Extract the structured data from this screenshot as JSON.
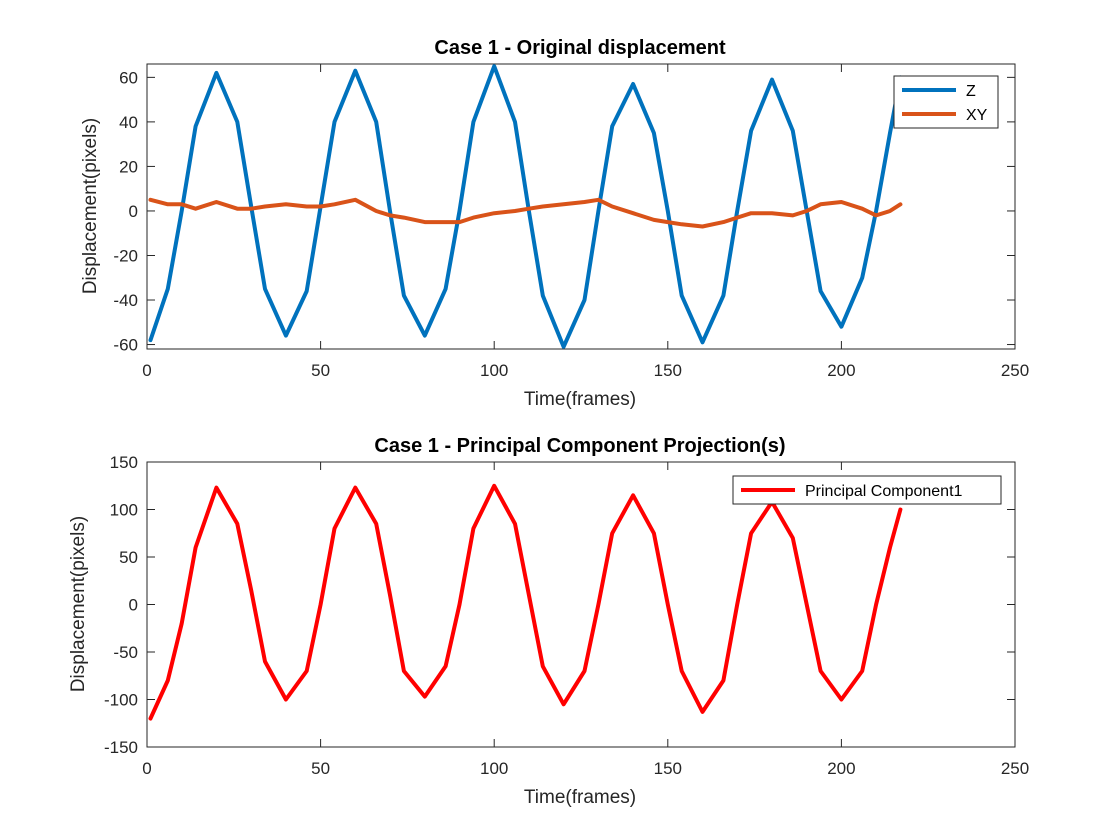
{
  "chart_data": [
    {
      "type": "line",
      "title": "Case 1 - Original displacement",
      "xlabel": "Time(frames)",
      "ylabel": "Displacement(pixels)",
      "xlim": [
        0,
        250
      ],
      "ylim": [
        -62,
        66
      ],
      "xticks": [
        0,
        50,
        100,
        150,
        200,
        250
      ],
      "yticks": [
        -60,
        -40,
        -20,
        0,
        20,
        40,
        60
      ],
      "grid": false,
      "legend_position": "top-right",
      "x": [
        1,
        6,
        10,
        14,
        20,
        26,
        30,
        34,
        40,
        46,
        50,
        54,
        60,
        66,
        70,
        74,
        80,
        86,
        90,
        94,
        100,
        106,
        110,
        114,
        120,
        126,
        130,
        134,
        140,
        146,
        150,
        154,
        160,
        166,
        170,
        174,
        180,
        186,
        190,
        194,
        200,
        206,
        210,
        214,
        217
      ],
      "series": [
        {
          "name": "Z",
          "color": "#0072BD",
          "values": [
            -58,
            -35,
            0,
            38,
            62,
            40,
            2,
            -35,
            -56,
            -36,
            2,
            40,
            63,
            40,
            0,
            -38,
            -56,
            -35,
            0,
            40,
            65,
            40,
            0,
            -38,
            -61,
            -40,
            0,
            38,
            57,
            35,
            0,
            -38,
            -59,
            -38,
            0,
            36,
            59,
            36,
            0,
            -36,
            -52,
            -30,
            0,
            35,
            60
          ]
        },
        {
          "name": "XY",
          "color": "#D95319",
          "values": [
            5,
            3,
            3,
            1,
            4,
            1,
            1,
            2,
            3,
            2,
            2,
            3,
            5,
            0,
            -2,
            -3,
            -5,
            -5,
            -5,
            -3,
            -1,
            0,
            1,
            2,
            3,
            4,
            5,
            2,
            -1,
            -4,
            -5,
            -6,
            -7,
            -5,
            -3,
            -1,
            -1,
            -2,
            0,
            3,
            4,
            1,
            -2,
            0,
            3
          ]
        }
      ]
    },
    {
      "type": "line",
      "title": "Case 1 - Principal Component Projection(s)",
      "xlabel": "Time(frames)",
      "ylabel": "Displacement(pixels)",
      "xlim": [
        0,
        250
      ],
      "ylim": [
        -150,
        150
      ],
      "xticks": [
        0,
        50,
        100,
        150,
        200,
        250
      ],
      "yticks": [
        -150,
        -100,
        -50,
        0,
        50,
        100,
        150
      ],
      "grid": false,
      "legend_position": "top-right",
      "x": [
        1,
        6,
        10,
        14,
        20,
        26,
        30,
        34,
        40,
        46,
        50,
        54,
        60,
        66,
        70,
        74,
        80,
        86,
        90,
        94,
        100,
        106,
        110,
        114,
        120,
        126,
        130,
        134,
        140,
        146,
        150,
        154,
        160,
        166,
        170,
        174,
        180,
        186,
        190,
        194,
        200,
        206,
        210,
        214,
        217
      ],
      "series": [
        {
          "name": "Principal Component1",
          "color": "#FF0000",
          "values": [
            -120,
            -80,
            -20,
            60,
            123,
            85,
            15,
            -60,
            -100,
            -70,
            0,
            80,
            123,
            85,
            10,
            -70,
            -97,
            -65,
            0,
            80,
            125,
            85,
            10,
            -65,
            -105,
            -70,
            0,
            75,
            115,
            75,
            0,
            -70,
            -113,
            -80,
            0,
            75,
            108,
            70,
            0,
            -70,
            -100,
            -70,
            0,
            60,
            100
          ]
        }
      ]
    }
  ]
}
